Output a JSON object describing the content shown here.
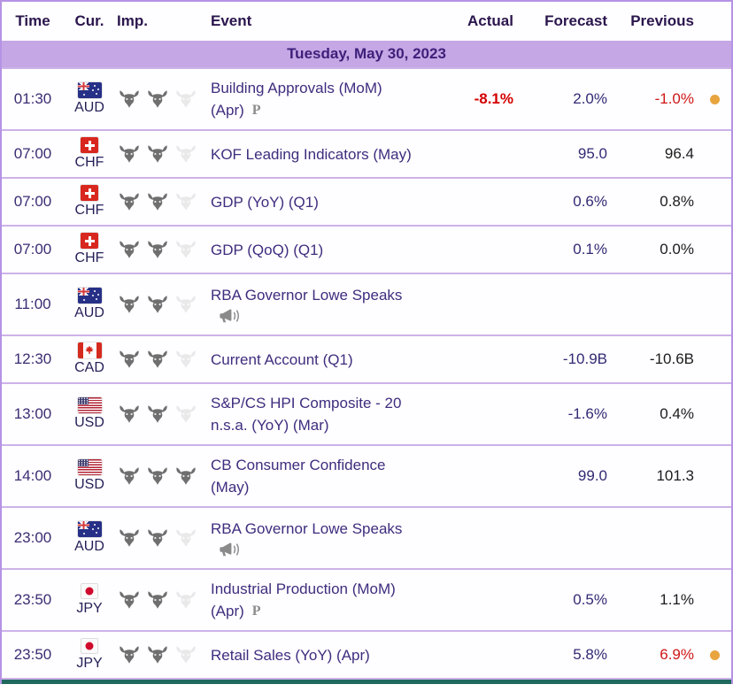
{
  "table": {
    "columns": [
      "Time",
      "Cur.",
      "Imp.",
      "Event",
      "Actual",
      "Forecast",
      "Previous"
    ],
    "date_header": "Tuesday, May 30, 2023"
  },
  "colors": {
    "accent_border_purple": "#b593e4",
    "row_separator_purple": "#cdb2e9",
    "date_bar_bg": "#c4a7e4",
    "header_text": "#2a164d",
    "event_text": "#3f2d7e",
    "forecast_text": "#322a74",
    "previous_text": "#1c1c1c",
    "negative_red": "#cf1717",
    "actual_red": "#d40000",
    "alert_dot_orange": "#e8a43e",
    "bull_active": "#6f6f6f",
    "bull_inactive": "#e9e9e9",
    "bottom_strip_teal": "#20695f"
  },
  "icons": {
    "bull": "bull-importance-icon",
    "megaphone": "speech-event-icon",
    "preliminary": "P"
  },
  "rows": [
    {
      "time": "01:30",
      "currency": "AUD",
      "flag": "australia",
      "importance": 2,
      "event_line1": "Building Approvals (MoM)",
      "event_line2": "(Apr)",
      "note": "preliminary",
      "actual": "-8.1%",
      "actual_style": "red-bold",
      "forecast": "2.0%",
      "previous": "-1.0%",
      "previous_style": "red",
      "dot": true
    },
    {
      "time": "07:00",
      "currency": "CHF",
      "flag": "switzerland",
      "importance": 2,
      "event_line1": "KOF Leading Indicators (May)",
      "event_line2": "",
      "note": "",
      "actual": "",
      "actual_style": "",
      "forecast": "95.0",
      "previous": "96.4",
      "previous_style": "",
      "dot": false
    },
    {
      "time": "07:00",
      "currency": "CHF",
      "flag": "switzerland",
      "importance": 2,
      "event_line1": "GDP (YoY) (Q1)",
      "event_line2": "",
      "note": "",
      "actual": "",
      "actual_style": "",
      "forecast": "0.6%",
      "previous": "0.8%",
      "previous_style": "",
      "dot": false
    },
    {
      "time": "07:00",
      "currency": "CHF",
      "flag": "switzerland",
      "importance": 2,
      "event_line1": "GDP (QoQ) (Q1)",
      "event_line2": "",
      "note": "",
      "actual": "",
      "actual_style": "",
      "forecast": "0.1%",
      "previous": "0.0%",
      "previous_style": "",
      "dot": false
    },
    {
      "time": "11:00",
      "currency": "AUD",
      "flag": "australia",
      "importance": 2,
      "event_line1": "RBA Governor Lowe Speaks",
      "event_line2": "",
      "note": "speech",
      "actual": "",
      "actual_style": "",
      "forecast": "",
      "previous": "",
      "previous_style": "",
      "dot": false
    },
    {
      "time": "12:30",
      "currency": "CAD",
      "flag": "canada",
      "importance": 2,
      "event_line1": "Current Account (Q1)",
      "event_line2": "",
      "note": "",
      "actual": "",
      "actual_style": "",
      "forecast": "-10.9B",
      "previous": "-10.6B",
      "previous_style": "",
      "dot": false
    },
    {
      "time": "13:00",
      "currency": "USD",
      "flag": "usa",
      "importance": 2,
      "event_line1": "S&P/CS HPI Composite - 20",
      "event_line2": "n.s.a. (YoY) (Mar)",
      "note": "",
      "actual": "",
      "actual_style": "",
      "forecast": "-1.6%",
      "previous": "0.4%",
      "previous_style": "",
      "dot": false
    },
    {
      "time": "14:00",
      "currency": "USD",
      "flag": "usa",
      "importance": 3,
      "event_line1": "CB Consumer Confidence",
      "event_line2": "(May)",
      "note": "",
      "actual": "",
      "actual_style": "",
      "forecast": "99.0",
      "previous": "101.3",
      "previous_style": "",
      "dot": false
    },
    {
      "time": "23:00",
      "currency": "AUD",
      "flag": "australia",
      "importance": 2,
      "event_line1": "RBA Governor Lowe Speaks",
      "event_line2": "",
      "note": "speech",
      "actual": "",
      "actual_style": "",
      "forecast": "",
      "previous": "",
      "previous_style": "",
      "dot": false
    },
    {
      "time": "23:50",
      "currency": "JPY",
      "flag": "japan",
      "importance": 2,
      "event_line1": "Industrial Production (MoM)",
      "event_line2": "(Apr)",
      "note": "preliminary",
      "actual": "",
      "actual_style": "",
      "forecast": "0.5%",
      "previous": "1.1%",
      "previous_style": "",
      "dot": false
    },
    {
      "time": "23:50",
      "currency": "JPY",
      "flag": "japan",
      "importance": 2,
      "event_line1": "Retail Sales (YoY) (Apr)",
      "event_line2": "",
      "note": "",
      "actual": "",
      "actual_style": "",
      "forecast": "5.8%",
      "previous": "6.9%",
      "previous_style": "red",
      "dot": true
    }
  ]
}
